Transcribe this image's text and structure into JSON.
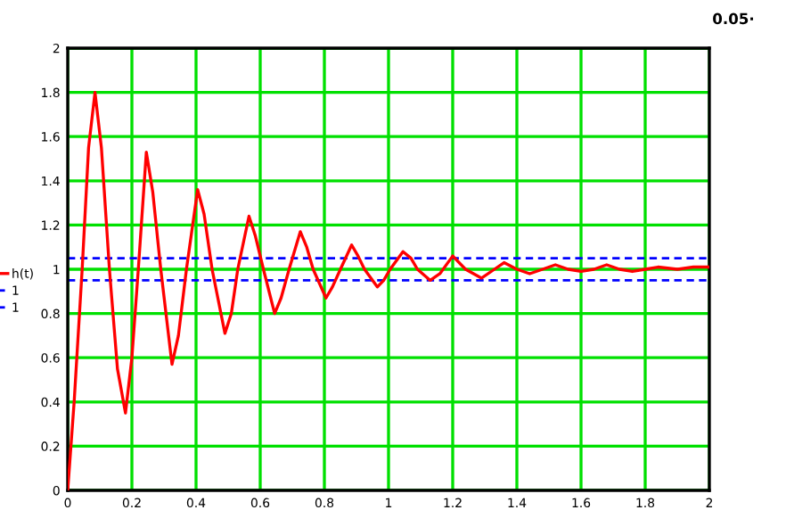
{
  "chart_data": {
    "type": "line",
    "annotations": [
      "0.05·"
    ],
    "x": [
      0,
      0.02,
      0.045,
      0.065,
      0.085,
      0.105,
      0.13,
      0.155,
      0.18,
      0.2,
      0.22,
      0.245,
      0.265,
      0.29,
      0.325,
      0.345,
      0.37,
      0.405,
      0.425,
      0.45,
      0.49,
      0.51,
      0.53,
      0.565,
      0.585,
      0.61,
      0.645,
      0.665,
      0.69,
      0.725,
      0.745,
      0.765,
      0.805,
      0.825,
      0.85,
      0.885,
      0.905,
      0.925,
      0.965,
      0.985,
      1.005,
      1.045,
      1.07,
      1.09,
      1.13,
      1.16,
      1.2,
      1.24,
      1.29,
      1.33,
      1.36,
      1.4,
      1.44,
      1.48,
      1.52,
      1.56,
      1.6,
      1.64,
      1.68,
      1.72,
      1.76,
      1.8,
      1.84,
      1.9,
      1.95,
      2.0
    ],
    "series": [
      {
        "name": "h(t)",
        "color": "#ff0000",
        "values": [
          0,
          0.4,
          1.0,
          1.55,
          1.8,
          1.55,
          1.0,
          0.55,
          0.35,
          0.6,
          1.0,
          1.53,
          1.35,
          1.0,
          0.57,
          0.7,
          1.0,
          1.36,
          1.25,
          1.0,
          0.71,
          0.8,
          1.0,
          1.24,
          1.15,
          1.0,
          0.8,
          0.87,
          1.0,
          1.17,
          1.1,
          1.0,
          0.87,
          0.92,
          1.0,
          1.11,
          1.06,
          1.0,
          0.92,
          0.95,
          1.0,
          1.08,
          1.05,
          1.0,
          0.95,
          0.98,
          1.06,
          1.0,
          0.96,
          1.0,
          1.03,
          1.0,
          0.98,
          1.0,
          1.02,
          1.0,
          0.99,
          1.0,
          1.02,
          1.0,
          0.99,
          1.0,
          1.01,
          1.0,
          1.01,
          1.01
        ]
      }
    ],
    "ref_lines": [
      {
        "axis": "y",
        "value": 1.05,
        "label": "1",
        "color": "#0000ff",
        "line_style": "dashed"
      },
      {
        "axis": "y",
        "value": 0.95,
        "label": "1",
        "color": "#0000ff",
        "line_style": "dashed"
      }
    ],
    "xlim": [
      0,
      2
    ],
    "xticks": [
      0,
      0.2,
      0.4,
      0.6,
      0.8,
      1,
      1.2,
      1.4,
      1.6,
      1.8,
      2
    ],
    "ylim": [
      0,
      2
    ],
    "yticks": [
      0,
      0.2,
      0.4,
      0.6,
      0.8,
      1,
      1.2,
      1.4,
      1.6,
      1.8,
      2
    ],
    "grid": true,
    "legend": "left",
    "marker": "none",
    "line_style": "solid"
  }
}
